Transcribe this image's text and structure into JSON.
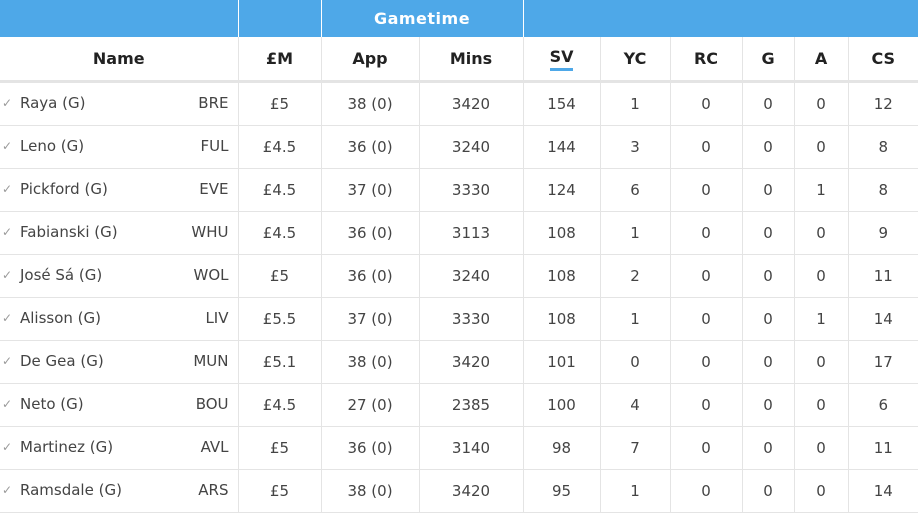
{
  "table": {
    "group_header": "Gametime",
    "columns": {
      "name": "Name",
      "price": "£M",
      "app": "App",
      "mins": "Mins",
      "sv": "SV",
      "yc": "YC",
      "rc": "RC",
      "g": "G",
      "a": "A",
      "cs": "CS"
    },
    "sorted_column": "sv",
    "rows": [
      {
        "name": "Raya (G)",
        "team": "BRE",
        "price": "£5",
        "app": "38 (0)",
        "mins": "3420",
        "sv": "154",
        "yc": "1",
        "rc": "0",
        "g": "0",
        "a": "0",
        "cs": "12"
      },
      {
        "name": "Leno (G)",
        "team": "FUL",
        "price": "£4.5",
        "app": "36 (0)",
        "mins": "3240",
        "sv": "144",
        "yc": "3",
        "rc": "0",
        "g": "0",
        "a": "0",
        "cs": "8"
      },
      {
        "name": "Pickford (G)",
        "team": "EVE",
        "price": "£4.5",
        "app": "37 (0)",
        "mins": "3330",
        "sv": "124",
        "yc": "6",
        "rc": "0",
        "g": "0",
        "a": "1",
        "cs": "8"
      },
      {
        "name": "Fabianski (G)",
        "team": "WHU",
        "price": "£4.5",
        "app": "36 (0)",
        "mins": "3113",
        "sv": "108",
        "yc": "1",
        "rc": "0",
        "g": "0",
        "a": "0",
        "cs": "9"
      },
      {
        "name": "José Sá (G)",
        "team": "WOL",
        "price": "£5",
        "app": "36 (0)",
        "mins": "3240",
        "sv": "108",
        "yc": "2",
        "rc": "0",
        "g": "0",
        "a": "0",
        "cs": "11"
      },
      {
        "name": "Alisson (G)",
        "team": "LIV",
        "price": "£5.5",
        "app": "37 (0)",
        "mins": "3330",
        "sv": "108",
        "yc": "1",
        "rc": "0",
        "g": "0",
        "a": "1",
        "cs": "14"
      },
      {
        "name": "De Gea (G)",
        "team": "MUN",
        "price": "£5.1",
        "app": "38 (0)",
        "mins": "3420",
        "sv": "101",
        "yc": "0",
        "rc": "0",
        "g": "0",
        "a": "0",
        "cs": "17"
      },
      {
        "name": "Neto (G)",
        "team": "BOU",
        "price": "£4.5",
        "app": "27 (0)",
        "mins": "2385",
        "sv": "100",
        "yc": "4",
        "rc": "0",
        "g": "0",
        "a": "0",
        "cs": "6"
      },
      {
        "name": "Martinez (G)",
        "team": "AVL",
        "price": "£5",
        "app": "36 (0)",
        "mins": "3140",
        "sv": "98",
        "yc": "7",
        "rc": "0",
        "g": "0",
        "a": "0",
        "cs": "11"
      },
      {
        "name": "Ramsdale (G)",
        "team": "ARS",
        "price": "£5",
        "app": "38 (0)",
        "mins": "3420",
        "sv": "95",
        "yc": "1",
        "rc": "0",
        "g": "0",
        "a": "0",
        "cs": "14"
      }
    ],
    "row_icon": "checkmark-icon",
    "accent_color": "#4ea8e8"
  }
}
